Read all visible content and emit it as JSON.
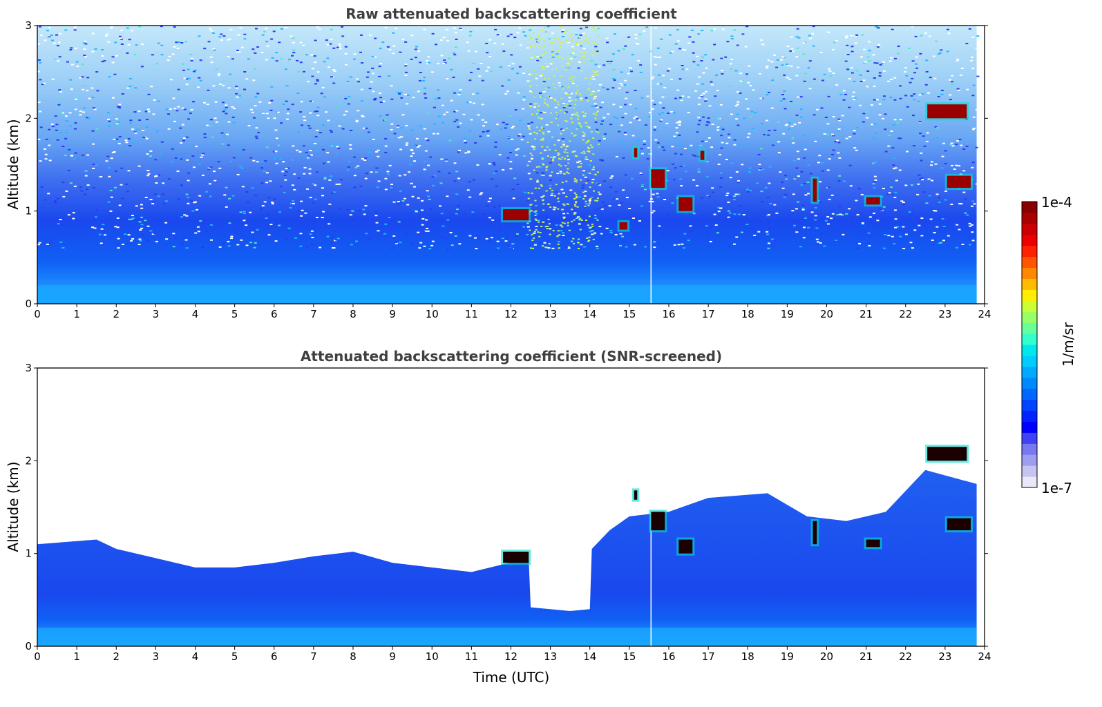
{
  "figure": {
    "colorbar": {
      "max_label": "1e-4",
      "min_label": "1e-7",
      "unit_label": "1/m/sr",
      "colors": [
        "#e8e8f8",
        "#c4c4ee",
        "#9e9ef0",
        "#7878f0",
        "#4040f4",
        "#0000ff",
        "#0022ff",
        "#0044ff",
        "#0066ff",
        "#0088ff",
        "#00aaff",
        "#00ccff",
        "#00e8ee",
        "#33ffcc",
        "#66ff99",
        "#99ff66",
        "#ccff33",
        "#ffee00",
        "#ffbb00",
        "#ff8800",
        "#ff5500",
        "#ff2200",
        "#ee0000",
        "#cc0000",
        "#aa0000",
        "#880000"
      ]
    }
  },
  "chart_data": [
    {
      "type": "heatmap",
      "title": "Raw attenuated backscattering coefficient",
      "xlabel": "",
      "ylabel": "Altitude (km)",
      "xlim": [
        0,
        24
      ],
      "ylim": [
        0,
        3
      ],
      "x_ticks": [
        "0",
        "1",
        "2",
        "3",
        "4",
        "5",
        "6",
        "7",
        "8",
        "9",
        "10",
        "11",
        "12",
        "13",
        "14",
        "15",
        "16",
        "17",
        "18",
        "19",
        "20",
        "21",
        "22",
        "23",
        "24"
      ],
      "y_ticks": [
        "0",
        "1",
        "2",
        "3"
      ],
      "data_extent_hours": 23.8,
      "gap_time": 15.55,
      "background_altitude_km": 1.0,
      "near_surface_layer_top_km": 0.2,
      "noise_plume": {
        "center_time": 13.3,
        "half_width": 0.9
      },
      "features": [
        {
          "kind": "cloud",
          "time_start": 22.55,
          "time_end": 23.55,
          "alt_bottom": 2.0,
          "alt_top": 2.15
        },
        {
          "kind": "cloud",
          "time_start": 23.05,
          "time_end": 23.65,
          "alt_bottom": 1.25,
          "alt_top": 1.38
        },
        {
          "kind": "cloud",
          "time_start": 16.25,
          "time_end": 16.6,
          "alt_bottom": 1.0,
          "alt_top": 1.15
        },
        {
          "kind": "cloud",
          "time_start": 15.55,
          "time_end": 15.9,
          "alt_bottom": 1.25,
          "alt_top": 1.45
        },
        {
          "kind": "cloud",
          "time_start": 11.8,
          "time_end": 12.45,
          "alt_bottom": 0.9,
          "alt_top": 1.02
        },
        {
          "kind": "cloud",
          "time_start": 14.75,
          "time_end": 14.95,
          "alt_bottom": 0.8,
          "alt_top": 0.88
        },
        {
          "kind": "cloud",
          "time_start": 15.12,
          "time_end": 15.2,
          "alt_bottom": 1.58,
          "alt_top": 1.68
        },
        {
          "kind": "cloud",
          "time_start": 19.65,
          "time_end": 19.75,
          "alt_bottom": 1.1,
          "alt_top": 1.35
        },
        {
          "kind": "cloud",
          "time_start": 21.0,
          "time_end": 21.35,
          "alt_bottom": 1.07,
          "alt_top": 1.15
        },
        {
          "kind": "cloud",
          "time_start": 16.8,
          "time_end": 16.9,
          "alt_bottom": 1.55,
          "alt_top": 1.65
        }
      ]
    },
    {
      "type": "heatmap",
      "title": "Attenuated backscattering coefficient (SNR-screened)",
      "xlabel": "Time (UTC)",
      "ylabel": "Altitude (km)",
      "xlim": [
        0,
        24
      ],
      "ylim": [
        0,
        3
      ],
      "x_ticks": [
        "0",
        "1",
        "2",
        "3",
        "4",
        "5",
        "6",
        "7",
        "8",
        "9",
        "10",
        "11",
        "12",
        "13",
        "14",
        "15",
        "16",
        "17",
        "18",
        "19",
        "20",
        "21",
        "22",
        "23",
        "24"
      ],
      "y_ticks": [
        "0",
        "1",
        "2",
        "3"
      ],
      "data_extent_hours": 23.8,
      "gap_time": 15.55,
      "screened_top_profile": [
        [
          0,
          1.1
        ],
        [
          1.5,
          1.15
        ],
        [
          2,
          1.05
        ],
        [
          3,
          0.95
        ],
        [
          4,
          0.85
        ],
        [
          5,
          0.85
        ],
        [
          6,
          0.9
        ],
        [
          7,
          0.97
        ],
        [
          8,
          1.02
        ],
        [
          9,
          0.9
        ],
        [
          10,
          0.85
        ],
        [
          11,
          0.8
        ],
        [
          12.45,
          0.95
        ],
        [
          12.5,
          0.42
        ],
        [
          13.5,
          0.38
        ],
        [
          14.0,
          0.4
        ],
        [
          14.05,
          1.05
        ],
        [
          14.5,
          1.25
        ],
        [
          15.0,
          1.4
        ],
        [
          16.0,
          1.45
        ],
        [
          17.0,
          1.6
        ],
        [
          18.5,
          1.65
        ],
        [
          19.5,
          1.4
        ],
        [
          20.5,
          1.35
        ],
        [
          21.5,
          1.45
        ],
        [
          22.5,
          1.9
        ],
        [
          23.8,
          1.75
        ]
      ],
      "features": [
        {
          "kind": "cloud",
          "time_start": 22.55,
          "time_end": 23.55,
          "alt_bottom": 2.0,
          "alt_top": 2.15
        },
        {
          "kind": "cloud",
          "time_start": 23.05,
          "time_end": 23.65,
          "alt_bottom": 1.25,
          "alt_top": 1.38
        },
        {
          "kind": "cloud",
          "time_start": 16.25,
          "time_end": 16.6,
          "alt_bottom": 1.0,
          "alt_top": 1.15
        },
        {
          "kind": "cloud",
          "time_start": 15.55,
          "time_end": 15.9,
          "alt_bottom": 1.25,
          "alt_top": 1.45
        },
        {
          "kind": "cloud",
          "time_start": 11.8,
          "time_end": 12.45,
          "alt_bottom": 0.9,
          "alt_top": 1.02
        },
        {
          "kind": "cloud",
          "time_start": 19.65,
          "time_end": 19.75,
          "alt_bottom": 1.1,
          "alt_top": 1.35
        },
        {
          "kind": "cloud",
          "time_start": 21.0,
          "time_end": 21.35,
          "alt_bottom": 1.07,
          "alt_top": 1.15
        },
        {
          "kind": "cloud",
          "time_start": 15.12,
          "time_end": 15.2,
          "alt_bottom": 1.58,
          "alt_top": 1.68
        }
      ]
    }
  ]
}
